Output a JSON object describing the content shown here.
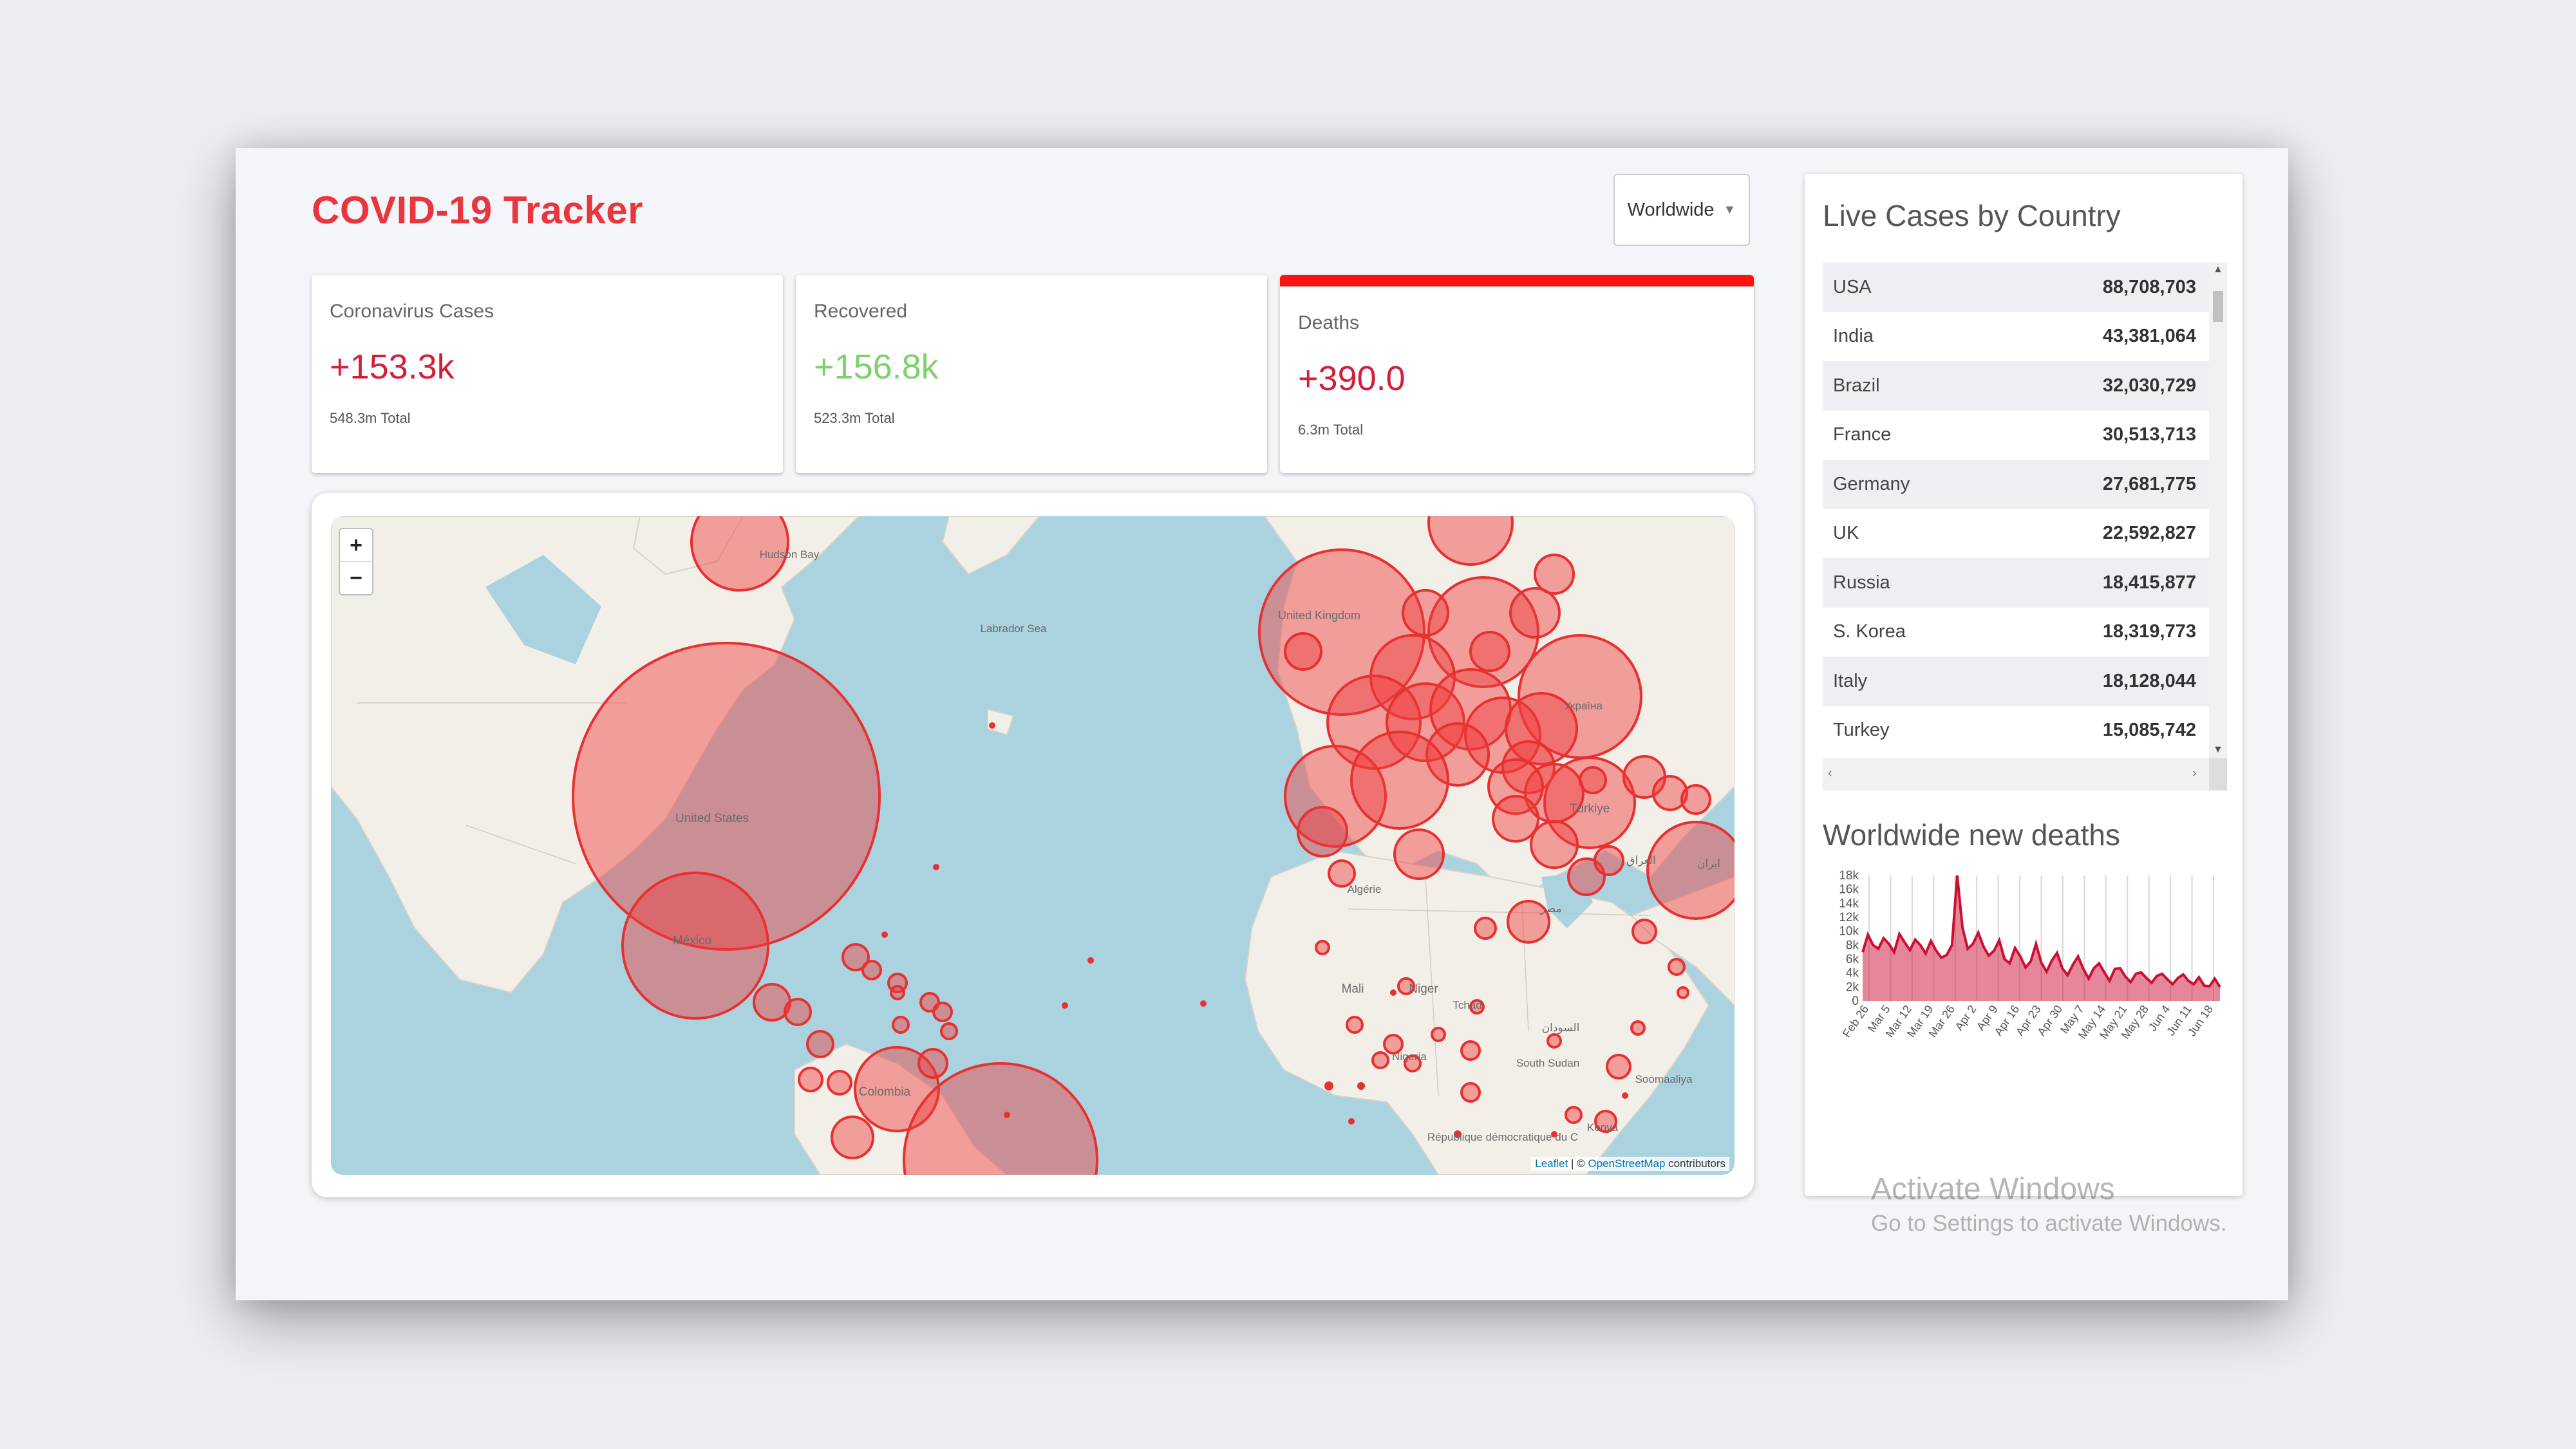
{
  "app": {
    "title": "COVID-19 Tracker"
  },
  "country_select": {
    "value": "Worldwide"
  },
  "stats": [
    {
      "label": "Coronavirus Cases",
      "value": "+153.3k",
      "total": "548.3m Total",
      "selected": false
    },
    {
      "label": "Recovered",
      "value": "+156.8k",
      "total": "523.3m Total",
      "selected": false
    },
    {
      "label": "Deaths",
      "value": "+390.0",
      "total": "6.3m Total",
      "selected": true
    }
  ],
  "map": {
    "zoom_in": "+",
    "zoom_out": "−",
    "attribution_leaflet": "Leaflet",
    "attribution_sep": " | © ",
    "attribution_osm": "OpenStreetMap",
    "attribution_tail": " contributors",
    "labels": [
      "Hudson Bay",
      "Labrador Sea",
      "United States",
      "México",
      "Colombia",
      "United Kingdom",
      "Україна",
      "Türkiye",
      "Algérie",
      "Mali",
      "Niger",
      "Tchad",
      "Nigeria",
      "South Sudan",
      "Soomaaliya",
      "Kenya",
      "République démocratique du C",
      "ایران",
      "العراق",
      "مصر",
      "السودان"
    ],
    "marker_color": "#f03c3c"
  },
  "live_cases": {
    "title": "Live Cases by Country",
    "rows": [
      {
        "country": "USA",
        "cases": "88,708,703"
      },
      {
        "country": "India",
        "cases": "43,381,064"
      },
      {
        "country": "Brazil",
        "cases": "32,030,729"
      },
      {
        "country": "France",
        "cases": "30,513,713"
      },
      {
        "country": "Germany",
        "cases": "27,681,775"
      },
      {
        "country": "UK",
        "cases": "22,592,827"
      },
      {
        "country": "Russia",
        "cases": "18,415,877"
      },
      {
        "country": "S. Korea",
        "cases": "18,319,773"
      },
      {
        "country": "Italy",
        "cases": "18,128,044"
      },
      {
        "country": "Turkey",
        "cases": "15,085,742"
      }
    ]
  },
  "chart_data": {
    "type": "area",
    "title": "Worldwide new deaths",
    "y_ticks": [
      "18k",
      "16k",
      "14k",
      "12k",
      "10k",
      "8k",
      "6k",
      "4k",
      "2k",
      "0"
    ],
    "x_ticks": [
      "Feb 26",
      "Mar 5",
      "Mar 12",
      "Mar 19",
      "Mar 26",
      "Apr 2",
      "Apr 9",
      "Apr 16",
      "Apr 23",
      "Apr 30",
      "May 7",
      "May 14",
      "May 21",
      "May 28",
      "Jun 4",
      "Jun 11",
      "Jun 18"
    ],
    "ylim": [
      0,
      18000
    ],
    "values": [
      7000,
      9500,
      8000,
      7500,
      9000,
      8200,
      7000,
      9600,
      8400,
      7300,
      8800,
      8000,
      6800,
      8600,
      7200,
      6200,
      6600,
      8000,
      18000,
      10500,
      7500,
      8200,
      9800,
      7800,
      6500,
      7200,
      8700,
      6000,
      5400,
      7600,
      6400,
      4800,
      5700,
      8200,
      5500,
      4200,
      5800,
      6900,
      4700,
      3700,
      5200,
      6400,
      4600,
      3200,
      4700,
      5400,
      4100,
      2900,
      4600,
      4700,
      3500,
      2700,
      3900,
      4100,
      3300,
      2600,
      3600,
      3900,
      3100,
      2400,
      3300,
      3800,
      2900,
      2400,
      3400,
      2200,
      2100,
      3200,
      2000
    ],
    "color": "#cc1034"
  },
  "watermark": {
    "line1": "Activate Windows",
    "line2": "Go to Settings to activate Windows."
  }
}
